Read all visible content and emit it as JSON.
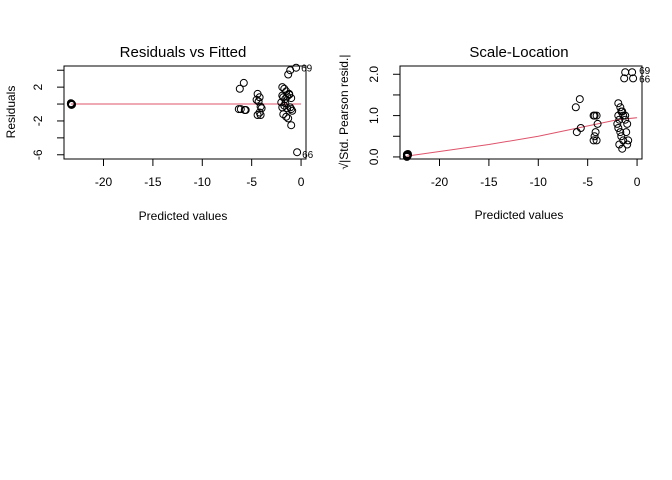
{
  "chart_data": [
    {
      "type": "scatter",
      "title": "Residuals vs Fitted",
      "xlabel": "Predicted values",
      "ylabel": "Residuals",
      "xlim": [
        -24,
        0.5
      ],
      "ylim": [
        -6.5,
        4.5
      ],
      "xticks": [
        -20,
        -15,
        -10,
        -5,
        0
      ],
      "xtick_labels": [
        "-20",
        "-15",
        "-10",
        "-5",
        "0"
      ],
      "yticks": [
        -6,
        -2,
        2
      ],
      "ytick_labels": [
        "-6",
        "-2",
        "2"
      ],
      "yticks_minor": [
        -4,
        0,
        4
      ],
      "grid": false,
      "legend": "none",
      "colors": {
        "points": "#000000",
        "smoother": "#df536b"
      },
      "points": {
        "x": [
          -23.3,
          -23.25,
          -23.2,
          -23.3,
          -23.25,
          -23.2,
          -23.3,
          -23.2,
          -6.2,
          -5.8,
          -6.3,
          -6.1,
          -5.7,
          -5.6,
          -4.4,
          -4.2,
          -4.5,
          -4.3,
          -4.1,
          -4.0,
          -4.2,
          -4.4,
          -4.1,
          -1.9,
          -1.7,
          -1.5,
          -1.2,
          -1.9,
          -1.8,
          -1.6,
          -1.4,
          -1.2,
          -1.0,
          -2.0,
          -1.9,
          -1.7,
          -1.6,
          -1.4,
          -1.1,
          -1.0,
          -0.9,
          -1.8,
          -1.5,
          -1.3,
          -1.0,
          -0.5,
          -1.1,
          -1.3,
          -0.4
        ],
        "y": [
          0.0,
          0.05,
          -0.05,
          0.1,
          -0.1,
          0.0,
          0.08,
          -0.08,
          1.8,
          2.5,
          -0.6,
          -0.6,
          -0.7,
          -0.7,
          1.2,
          0.8,
          0.5,
          0.3,
          -0.3,
          -0.5,
          -1.0,
          -1.3,
          -1.3,
          2.0,
          1.8,
          1.5,
          1.2,
          1.0,
          0.8,
          0.6,
          0.9,
          1.1,
          0.7,
          0.2,
          -0.4,
          -0.2,
          0.1,
          -0.5,
          -0.4,
          -0.6,
          -0.8,
          -1.2,
          -1.5,
          -1.7,
          -2.5,
          4.3,
          4.0,
          3.5,
          -5.7
        ]
      },
      "smoother": {
        "x": [
          -23.3,
          -6,
          -4,
          -2,
          0
        ],
        "y": [
          0.0,
          0.0,
          0.0,
          0.0,
          0.0
        ]
      },
      "annotations": [
        {
          "text": "69",
          "x": -0.5,
          "y": 4.3
        },
        {
          "text": "66",
          "x": -0.4,
          "y": -5.9
        }
      ]
    },
    {
      "type": "scatter",
      "title": "Scale-Location",
      "xlabel": "Predicted values",
      "ylabel": "√|Std. Pearson resid.|",
      "xlim": [
        -24,
        0.5
      ],
      "ylim": [
        -0.05,
        2.2
      ],
      "xticks": [
        -20,
        -15,
        -10,
        -5,
        0
      ],
      "xtick_labels": [
        "-20",
        "-15",
        "-10",
        "-5",
        "0"
      ],
      "yticks": [
        0.0,
        1.0,
        2.0
      ],
      "ytick_labels": [
        "0.0",
        "1.0",
        "2.0"
      ],
      "yticks_minor": [
        0.5,
        1.5
      ],
      "grid": false,
      "legend": "none",
      "colors": {
        "points": "#000000",
        "smoother": "#df536b"
      },
      "points": {
        "x": [
          -23.3,
          -23.25,
          -23.2,
          -23.3,
          -23.25,
          -23.2,
          -23.3,
          -23.2,
          -6.2,
          -5.8,
          -6.1,
          -5.7,
          -4.4,
          -4.3,
          -4.1,
          -4.0,
          -4.2,
          -4.3,
          -4.1,
          -4.4,
          -1.9,
          -1.7,
          -1.5,
          -1.2,
          -1.9,
          -1.8,
          -1.6,
          -1.4,
          -1.2,
          -1.0,
          -2.0,
          -1.9,
          -1.7,
          -1.6,
          -1.4,
          -1.1,
          -1.0,
          -0.9,
          -1.8,
          -1.5,
          -1.3,
          -1.2,
          -0.5,
          -0.4
        ],
        "y": [
          0.0,
          0.02,
          0.04,
          0.06,
          0.03,
          0.05,
          0.01,
          0.07,
          1.2,
          1.4,
          0.6,
          0.7,
          1.0,
          1.0,
          1.0,
          0.8,
          0.6,
          0.5,
          0.4,
          0.4,
          1.3,
          1.2,
          1.1,
          1.0,
          1.0,
          0.9,
          1.1,
          1.0,
          0.9,
          0.8,
          0.8,
          0.7,
          0.6,
          0.5,
          0.4,
          0.6,
          0.3,
          0.4,
          0.3,
          0.2,
          1.9,
          2.05,
          2.05,
          1.9
        ]
      },
      "smoother": {
        "x": [
          -23.3,
          -15,
          -10,
          -6,
          -4,
          -2,
          0
        ],
        "y": [
          0.02,
          0.3,
          0.5,
          0.7,
          0.8,
          0.9,
          0.95
        ]
      },
      "annotations": [
        {
          "text": "69",
          "x": -0.3,
          "y": 2.1
        },
        {
          "text": "66",
          "x": -0.3,
          "y": 1.9
        }
      ]
    }
  ]
}
